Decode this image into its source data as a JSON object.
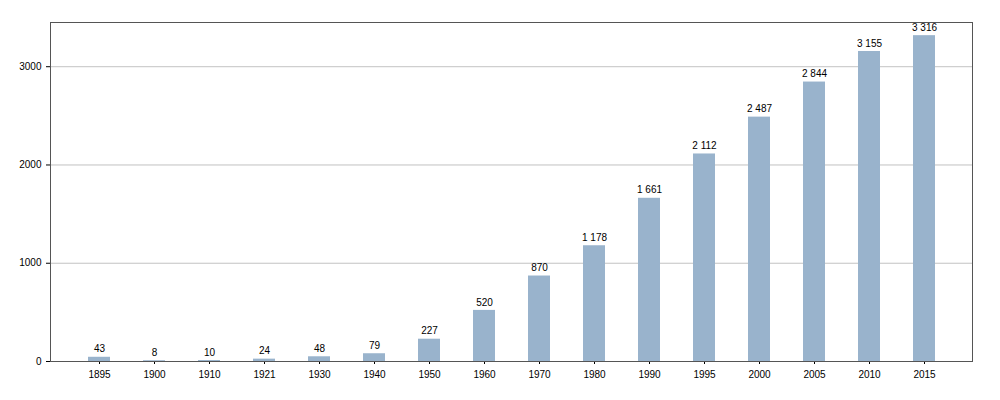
{
  "chart_data": {
    "type": "bar",
    "categories": [
      "1895",
      "1900",
      "1910",
      "1921",
      "1930",
      "1940",
      "1950",
      "1960",
      "1970",
      "1980",
      "1990",
      "1995",
      "2000",
      "2005",
      "2010",
      "2015"
    ],
    "values": [
      43,
      8,
      10,
      24,
      48,
      79,
      227,
      520,
      870,
      1178,
      1661,
      2112,
      2487,
      2844,
      3155,
      3316
    ],
    "value_labels": [
      "43",
      "8",
      "10",
      "24",
      "48",
      "79",
      "227",
      "520",
      "870",
      "1 178",
      "1 661",
      "2 112",
      "2 487",
      "2 844",
      "3 155",
      "3 316"
    ],
    "color": "#99b3cc",
    "ylim": [
      0,
      3450
    ],
    "yticks": [
      0,
      1000,
      2000,
      3000
    ],
    "grid": true,
    "data_labels": true
  }
}
